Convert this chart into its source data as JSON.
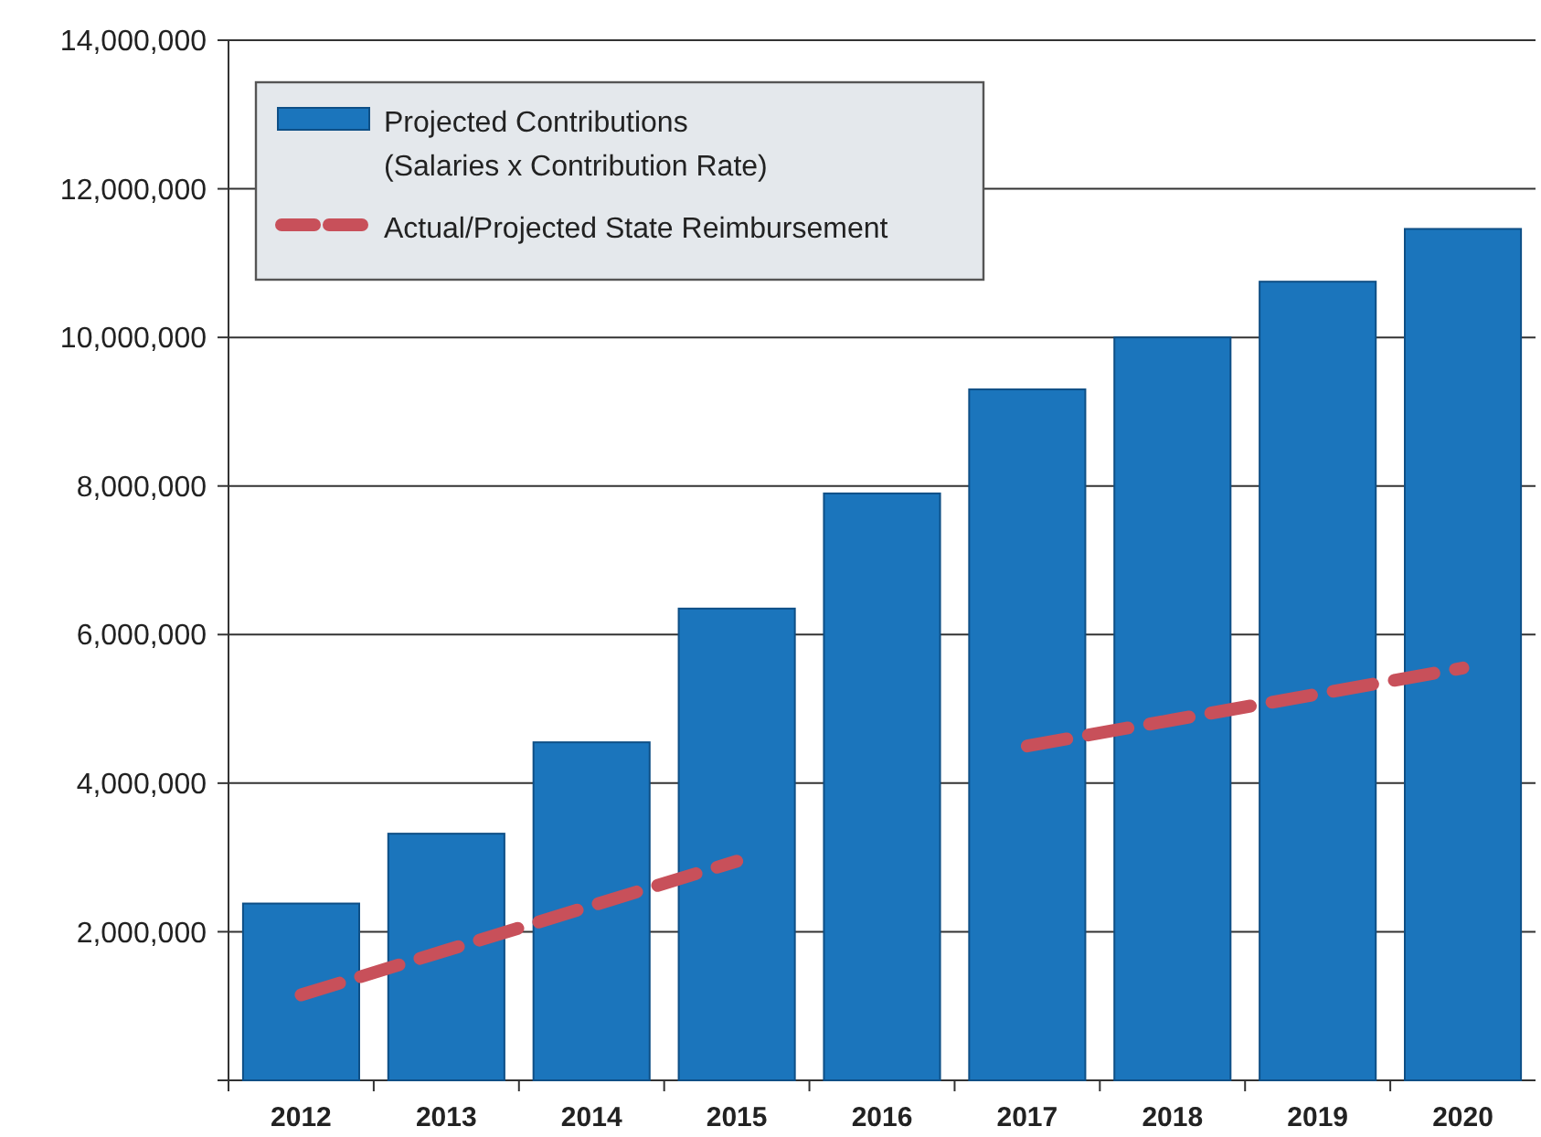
{
  "chart_data": {
    "type": "bar",
    "categories": [
      "2012",
      "2013",
      "2014",
      "2015",
      "2016",
      "2017",
      "2018",
      "2019",
      "2020"
    ],
    "series": [
      {
        "name": "Projected Contributions\n(Salaries x Contribution Rate)",
        "color": "#1b75bc",
        "values": [
          2380000,
          3320000,
          4550000,
          6350000,
          7900000,
          9300000,
          10000000,
          10750000,
          11460000
        ]
      },
      {
        "name": "Actual/Projected State Reimbursement",
        "type": "line",
        "color": "#c8505a",
        "line_style": "dashed",
        "values": [
          1150000,
          1750000,
          2350000,
          2950000,
          null,
          4500000,
          4850000,
          5200000,
          5550000
        ]
      }
    ],
    "ylim": [
      0,
      14000000
    ],
    "yticks": [
      {
        "value": 0,
        "label": null
      },
      {
        "value": 2000000,
        "label": "2,000,000"
      },
      {
        "value": 4000000,
        "label": "4,000,000"
      },
      {
        "value": 6000000,
        "label": "6,000,000"
      },
      {
        "value": 8000000,
        "label": "8,000,000"
      },
      {
        "value": 10000000,
        "label": "10,000,000"
      },
      {
        "value": 12000000,
        "label": "12,000,000"
      },
      {
        "value": 14000000,
        "label": "14,000,000"
      }
    ],
    "grid": "y",
    "legend": "top left"
  }
}
